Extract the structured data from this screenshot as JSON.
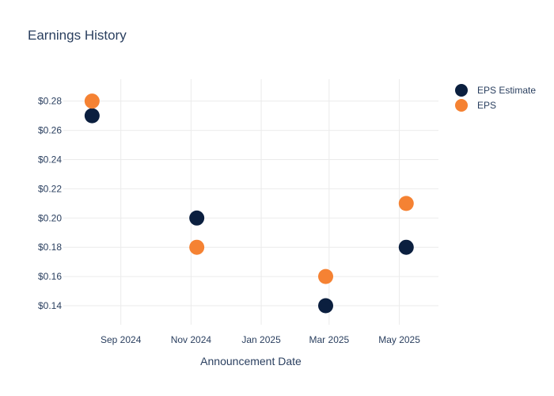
{
  "chart_data": {
    "type": "scatter",
    "title": "Earnings History",
    "xlabel": "Announcement Date",
    "ylabel": "",
    "x_ticks": [
      "Sep 2024",
      "Nov 2024",
      "Jan 2025",
      "Mar 2025",
      "May 2025"
    ],
    "y_ticks": [
      "$0.14",
      "$0.16",
      "$0.18",
      "$0.20",
      "$0.22",
      "$0.24",
      "$0.26",
      "$0.28"
    ],
    "ylim": [
      0.127,
      0.295
    ],
    "xlim": [
      "2024-07-13",
      "2025-06-04"
    ],
    "x_tick_dates": [
      "2024-09-01",
      "2024-11-01",
      "2025-01-01",
      "2025-03-01",
      "2025-05-01"
    ],
    "y_tick_values": [
      0.14,
      0.16,
      0.18,
      0.2,
      0.22,
      0.24,
      0.26,
      0.28
    ],
    "grid": true,
    "legend_position": "top-right",
    "series": [
      {
        "name": "EPS Estimate",
        "color": "#0b1f3f",
        "points": [
          {
            "x": "2024-08-07",
            "y": 0.27
          },
          {
            "x": "2024-11-06",
            "y": 0.2
          },
          {
            "x": "2025-02-26",
            "y": 0.14
          },
          {
            "x": "2025-05-07",
            "y": 0.18
          }
        ]
      },
      {
        "name": "EPS",
        "color": "#f58233",
        "points": [
          {
            "x": "2024-08-07",
            "y": 0.28
          },
          {
            "x": "2024-11-06",
            "y": 0.18
          },
          {
            "x": "2025-02-26",
            "y": 0.16
          },
          {
            "x": "2025-05-07",
            "y": 0.21
          }
        ]
      }
    ]
  }
}
